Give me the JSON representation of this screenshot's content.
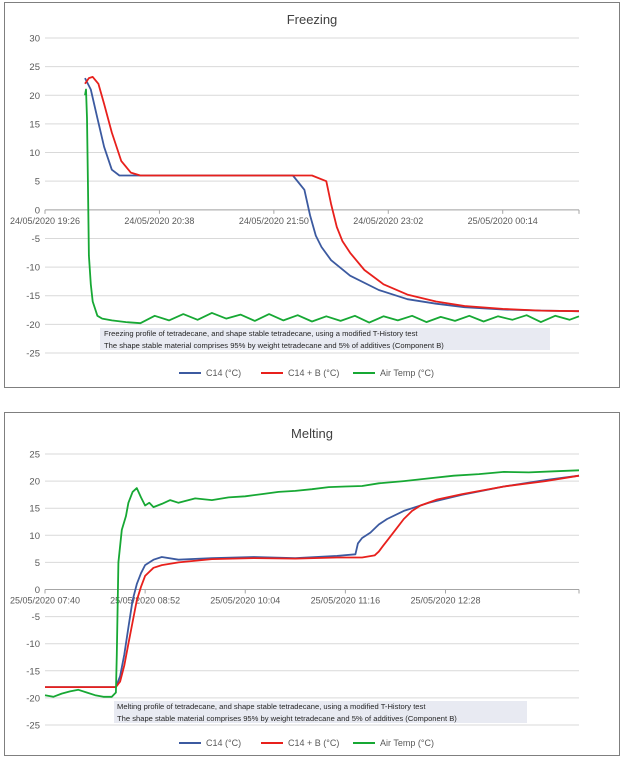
{
  "chart_data": [
    {
      "type": "line",
      "title": "Freezing",
      "xlabel": "",
      "ylabel": "",
      "ylim": [
        -25,
        30
      ],
      "y_ticks": [
        30,
        25,
        20,
        15,
        10,
        5,
        0,
        -5,
        -10,
        -15,
        -20,
        -25
      ],
      "x_range_hours": [
        0,
        5.6
      ],
      "x_ticks": [
        {
          "h": 0,
          "label": "24/05/2020 19:26"
        },
        {
          "h": 1.2,
          "label": "24/05/2020 20:38"
        },
        {
          "h": 2.4,
          "label": "24/05/2020 21:50"
        },
        {
          "h": 3.6,
          "label": "24/05/2020 23:02"
        },
        {
          "h": 4.8,
          "label": "25/05/2020 00:14"
        }
      ],
      "legend": "bottom",
      "annotations": [
        "Freezing profile of tetradecane, and shape stable tetradecane, using a modified T-History test",
        "The shape stable material comprises 95% by weight tetradecane and 5% of additives (Component B)"
      ],
      "series": [
        {
          "name": "C14 (°C)",
          "color": "#3c5aa0",
          "x": [
            0.42,
            0.48,
            0.55,
            0.62,
            0.7,
            0.78,
            1.0,
            1.5,
            2.0,
            2.4,
            2.6,
            2.72,
            2.78,
            2.84,
            2.9,
            3.0,
            3.2,
            3.5,
            3.8,
            4.1,
            4.4,
            4.8,
            5.2,
            5.6
          ],
          "y": [
            23,
            21,
            16,
            11,
            7,
            6,
            6,
            6,
            6,
            6,
            6,
            3.5,
            -1,
            -4.5,
            -6.5,
            -8.8,
            -11.5,
            -14,
            -15.6,
            -16.4,
            -17,
            -17.4,
            -17.6,
            -17.7
          ]
        },
        {
          "name": "C14 + B (°C)",
          "color": "#e8201c",
          "x": [
            0.42,
            0.46,
            0.5,
            0.56,
            0.62,
            0.7,
            0.8,
            0.9,
            1.0,
            1.5,
            2.0,
            2.5,
            2.8,
            2.95,
            3.0,
            3.06,
            3.12,
            3.2,
            3.35,
            3.55,
            3.8,
            4.1,
            4.4,
            4.8,
            5.2,
            5.6
          ],
          "y": [
            22,
            23,
            23.2,
            22,
            18.5,
            13.5,
            8.5,
            6.5,
            6,
            6,
            6,
            6,
            6,
            5,
            1,
            -3,
            -5.5,
            -7.5,
            -10.5,
            -13,
            -14.8,
            -16,
            -16.8,
            -17.3,
            -17.6,
            -17.7
          ]
        },
        {
          "name": "Air Temp (°C)",
          "color": "#17a834",
          "x": [
            0.42,
            0.43,
            0.44,
            0.45,
            0.46,
            0.48,
            0.5,
            0.55,
            0.6,
            0.7,
            0.85,
            1.0,
            1.15,
            1.3,
            1.45,
            1.6,
            1.75,
            1.9,
            2.05,
            2.2,
            2.35,
            2.5,
            2.65,
            2.8,
            2.95,
            3.1,
            3.25,
            3.4,
            3.55,
            3.7,
            3.85,
            4.0,
            4.15,
            4.3,
            4.45,
            4.6,
            4.75,
            4.9,
            5.05,
            5.2,
            5.35,
            5.5,
            5.6
          ],
          "y": [
            20,
            21,
            16,
            5,
            -8,
            -13,
            -16,
            -18.5,
            -19,
            -19.3,
            -19.6,
            -19.8,
            -18.5,
            -19.3,
            -18.2,
            -19.2,
            -18,
            -19,
            -18.3,
            -19.4,
            -18.2,
            -19.3,
            -18.4,
            -19.5,
            -18.6,
            -19.4,
            -18.5,
            -19.7,
            -18.6,
            -19.3,
            -18.5,
            -19.6,
            -18.7,
            -19.4,
            -18.5,
            -19.5,
            -18.6,
            -19.2,
            -18.4,
            -19.6,
            -18.5,
            -19.2,
            -18.6
          ]
        }
      ]
    },
    {
      "type": "line",
      "title": "Melting",
      "xlabel": "",
      "ylabel": "",
      "ylim": [
        -25,
        25
      ],
      "y_ticks": [
        25,
        20,
        15,
        10,
        5,
        0,
        -5,
        -10,
        -15,
        -20,
        -25
      ],
      "x_range_hours": [
        0,
        6.4
      ],
      "x_ticks": [
        {
          "h": 0,
          "label": "25/05/2020 07:40"
        },
        {
          "h": 1.2,
          "label": "25/05/2020 08:52"
        },
        {
          "h": 2.4,
          "label": "25/05/2020 10:04"
        },
        {
          "h": 3.6,
          "label": "25/05/2020 11:16"
        },
        {
          "h": 4.8,
          "label": "25/05/2020 12:28"
        }
      ],
      "legend": "bottom",
      "annotations": [
        "Melting profile of tetradecane, and shape stable tetradecane, using a modified T-History test",
        "The shape stable material comprises 95% by weight tetradecane and 5% of additives (Component B)"
      ],
      "series": [
        {
          "name": "C14 (°C)",
          "color": "#3c5aa0",
          "x": [
            0,
            0.3,
            0.6,
            0.85,
            0.9,
            0.95,
            1.0,
            1.05,
            1.1,
            1.15,
            1.2,
            1.3,
            1.4,
            1.6,
            2.0,
            2.5,
            3.0,
            3.5,
            3.72,
            3.75,
            3.8,
            3.9,
            4.0,
            4.1,
            4.3,
            4.6,
            5.0,
            5.5,
            6.0,
            6.4
          ],
          "y": [
            -18,
            -18,
            -18,
            -18,
            -16,
            -12,
            -7,
            -2,
            1,
            3,
            4.5,
            5.5,
            6,
            5.5,
            5.8,
            6,
            5.8,
            6.2,
            6.5,
            8.5,
            9.5,
            10.5,
            12,
            13,
            14.5,
            16,
            17.5,
            19,
            20.2,
            21
          ]
        },
        {
          "name": "C14 + B (°C)",
          "color": "#e8201c",
          "x": [
            0,
            0.3,
            0.6,
            0.85,
            0.9,
            0.95,
            1.0,
            1.05,
            1.1,
            1.15,
            1.2,
            1.3,
            1.4,
            1.6,
            2.0,
            2.5,
            3.0,
            3.5,
            3.8,
            3.95,
            4.0,
            4.05,
            4.1,
            4.2,
            4.3,
            4.4,
            4.5,
            4.7,
            5.0,
            5.5,
            6.0,
            6.4
          ],
          "y": [
            -18,
            -18,
            -18,
            -18,
            -17,
            -14,
            -10,
            -6,
            -2,
            0.5,
            2.5,
            4,
            4.5,
            5,
            5.6,
            5.8,
            5.7,
            5.9,
            5.9,
            6.3,
            7,
            8,
            9,
            11,
            13,
            14.5,
            15.5,
            16.6,
            17.6,
            19,
            20,
            21
          ]
        },
        {
          "name": "Air Temp (°C)",
          "color": "#17a834",
          "x": [
            0,
            0.1,
            0.2,
            0.3,
            0.4,
            0.5,
            0.6,
            0.7,
            0.8,
            0.85,
            0.86,
            0.88,
            0.92,
            0.97,
            1.0,
            1.05,
            1.1,
            1.15,
            1.2,
            1.25,
            1.3,
            1.4,
            1.5,
            1.6,
            1.8,
            2.0,
            2.2,
            2.4,
            2.6,
            2.8,
            3.0,
            3.2,
            3.4,
            3.6,
            3.8,
            4.0,
            4.3,
            4.6,
            4.9,
            5.2,
            5.5,
            5.8,
            6.1,
            6.4
          ],
          "y": [
            -19.5,
            -19.8,
            -19.2,
            -18.8,
            -18.5,
            -19,
            -19.5,
            -19.8,
            -19.8,
            -19,
            -12,
            5,
            11,
            13.5,
            16,
            18,
            18.7,
            17,
            15.5,
            16,
            15.2,
            15.8,
            16.5,
            16,
            16.8,
            16.5,
            17,
            17.2,
            17.6,
            18,
            18.2,
            18.5,
            18.9,
            19,
            19.1,
            19.6,
            20,
            20.5,
            21,
            21.3,
            21.7,
            21.6,
            21.8,
            22
          ]
        }
      ]
    }
  ]
}
